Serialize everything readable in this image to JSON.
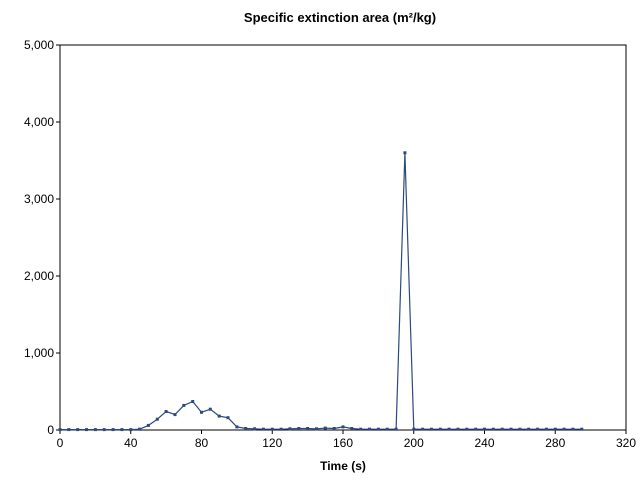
{
  "chart_data": {
    "type": "line",
    "title": "Specific extinction area (m²/kg)",
    "xlabel": "Time (s)",
    "ylabel": "",
    "xlim": [
      0,
      320
    ],
    "ylim": [
      0,
      5000
    ],
    "x_ticks": [
      0,
      40,
      80,
      120,
      160,
      200,
      240,
      280,
      320
    ],
    "x_tick_labels": [
      "0",
      "40",
      "80",
      "120",
      "160",
      "200",
      "240",
      "280",
      "320"
    ],
    "y_ticks": [
      0,
      1000,
      2000,
      3000,
      4000,
      5000
    ],
    "y_tick_labels": [
      "0",
      "1,000",
      "2,000",
      "3,000",
      "4,000",
      "5,000"
    ],
    "grid": false,
    "legend": "none",
    "series": [
      {
        "color": "#2c4a7e",
        "x": [
          0,
          5,
          10,
          15,
          20,
          25,
          30,
          35,
          40,
          45,
          50,
          55,
          60,
          65,
          70,
          75,
          80,
          85,
          90,
          95,
          100,
          105,
          110,
          115,
          120,
          125,
          130,
          135,
          140,
          145,
          150,
          155,
          160,
          165,
          170,
          175,
          180,
          185,
          190,
          195,
          200,
          205,
          210,
          215,
          220,
          225,
          230,
          235,
          240,
          245,
          250,
          255,
          260,
          265,
          270,
          275,
          280,
          285,
          290,
          295
        ],
        "y": [
          5,
          5,
          5,
          5,
          5,
          5,
          5,
          5,
          5,
          10,
          60,
          140,
          240,
          200,
          320,
          370,
          230,
          270,
          180,
          160,
          40,
          20,
          15,
          10,
          10,
          10,
          15,
          20,
          20,
          15,
          25,
          20,
          40,
          20,
          10,
          10,
          10,
          10,
          10,
          3600,
          10,
          10,
          10,
          10,
          10,
          10,
          10,
          10,
          10,
          10,
          10,
          10,
          10,
          10,
          10,
          10,
          10,
          10,
          10,
          10
        ]
      }
    ]
  }
}
